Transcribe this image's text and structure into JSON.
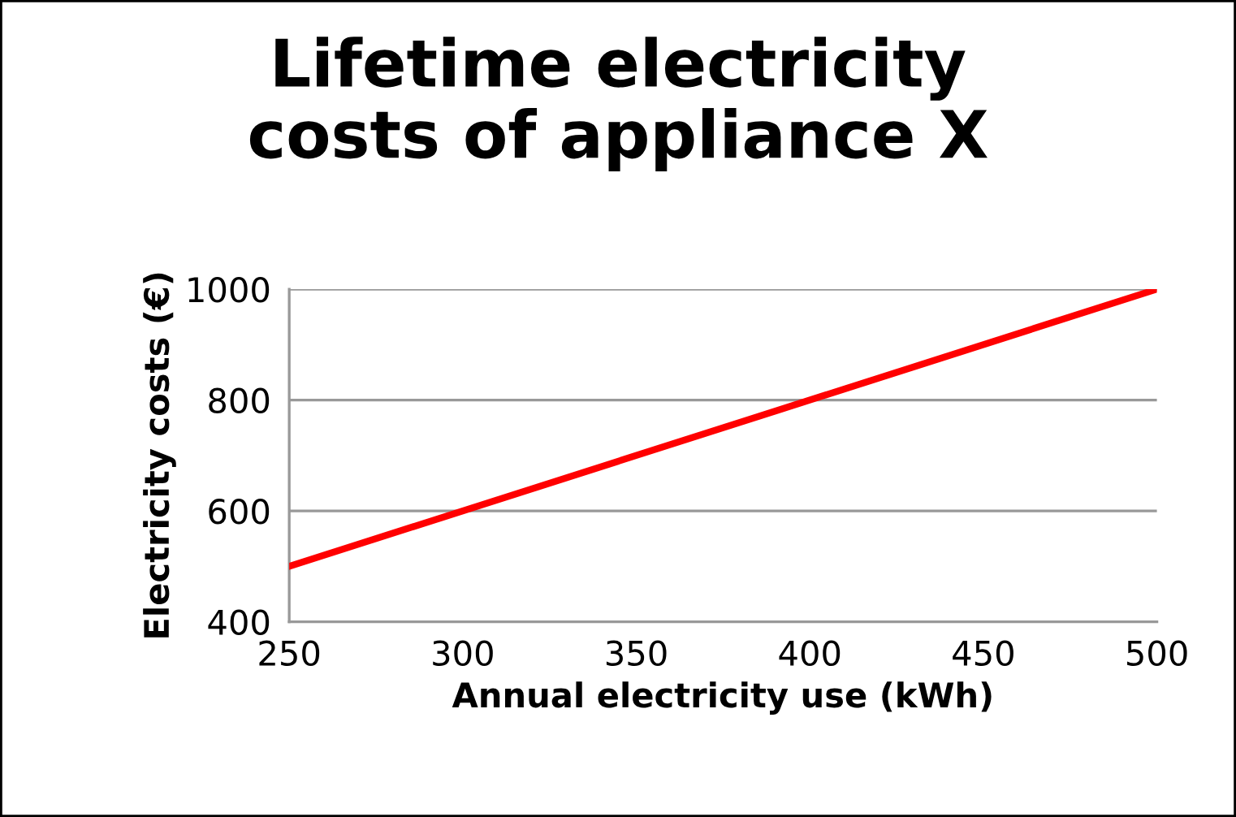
{
  "chart_data": {
    "type": "line",
    "title": "Lifetime electricity\ncosts of appliance X",
    "xlabel": "Annual electricity use (kWh)",
    "ylabel": "Electricity costs (€)",
    "x": [
      250,
      500
    ],
    "series": [
      {
        "color": "#ff0000",
        "values": [
          500,
          1000
        ]
      }
    ],
    "xlim": [
      250,
      500
    ],
    "xticks": [
      250,
      300,
      350,
      400,
      450,
      500
    ],
    "ylim": [
      400,
      1000
    ],
    "yticks": [
      400,
      600,
      800,
      1000
    ],
    "grid": "y",
    "legend": false,
    "marker": "none",
    "line_style": "solid"
  }
}
